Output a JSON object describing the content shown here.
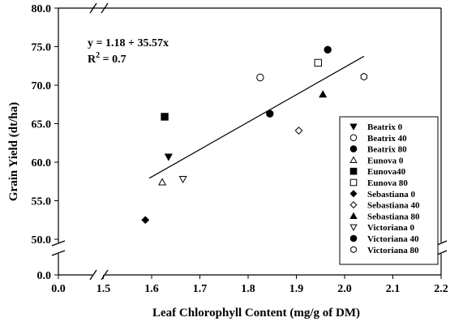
{
  "chart_data": {
    "type": "scatter",
    "xlabel": "Leaf Chlorophyll Content (mg/g of DM)",
    "ylabel": "Grain Yield (dt/ha)",
    "xlim": [
      0.0,
      2.2
    ],
    "ylim": [
      0.0,
      80.0
    ],
    "x_break": [
      0.0,
      1.5
    ],
    "y_break": [
      0.0,
      50.0
    ],
    "x_ticks": [
      "0.0",
      "1.5",
      "1.6",
      "1.7",
      "1.8",
      "1.9",
      "2.0",
      "2.1",
      "2.2"
    ],
    "y_ticks": [
      "0.0",
      "50.0",
      "55.0",
      "60.0",
      "65.0",
      "70.0",
      "75.0",
      "80.0"
    ],
    "annotation": {
      "equation": "y = 1.18 + 35.57x",
      "r2_prefix": "R",
      "r2_sup": "2",
      "r2_suffix": " = 0.7"
    },
    "regression": {
      "intercept": 1.18,
      "slope": 35.57,
      "x_range": [
        1.595,
        2.04
      ]
    },
    "legend_position": "right",
    "series": [
      {
        "name": "Beatrix 0",
        "marker": "triangle-down",
        "filled": true,
        "x": 1.635,
        "y": 60.7
      },
      {
        "name": "Beatrix 40",
        "marker": "circle",
        "filled": false,
        "x": 1.825,
        "y": 71.0
      },
      {
        "name": "Beatrix 80",
        "marker": "circle",
        "filled": true,
        "x": 1.845,
        "y": 66.3
      },
      {
        "name": "Eunova 0",
        "marker": "triangle-up",
        "filled": false,
        "x": 1.622,
        "y": 57.4
      },
      {
        "name": "Eunova40",
        "marker": "square",
        "filled": true,
        "x": 1.627,
        "y": 65.9
      },
      {
        "name": "Eunova 80",
        "marker": "square",
        "filled": false,
        "x": 1.945,
        "y": 72.9
      },
      {
        "name": "Sebastiana 0",
        "marker": "diamond",
        "filled": true,
        "x": 1.587,
        "y": 52.5
      },
      {
        "name": "Sebastiana 40",
        "marker": "diamond",
        "filled": false,
        "x": 1.905,
        "y": 64.1
      },
      {
        "name": "Sebastiana 80",
        "marker": "triangle-up",
        "filled": true,
        "x": 1.955,
        "y": 68.8
      },
      {
        "name": "Victoriana 0",
        "marker": "triangle-down",
        "filled": false,
        "x": 1.665,
        "y": 57.8
      },
      {
        "name": "Victoriana 40",
        "marker": "circle",
        "filled": true,
        "x": 1.965,
        "y": 74.6
      },
      {
        "name": "Victoriana 80",
        "marker": "hexagon",
        "filled": false,
        "x": 2.04,
        "y": 71.1
      }
    ]
  }
}
